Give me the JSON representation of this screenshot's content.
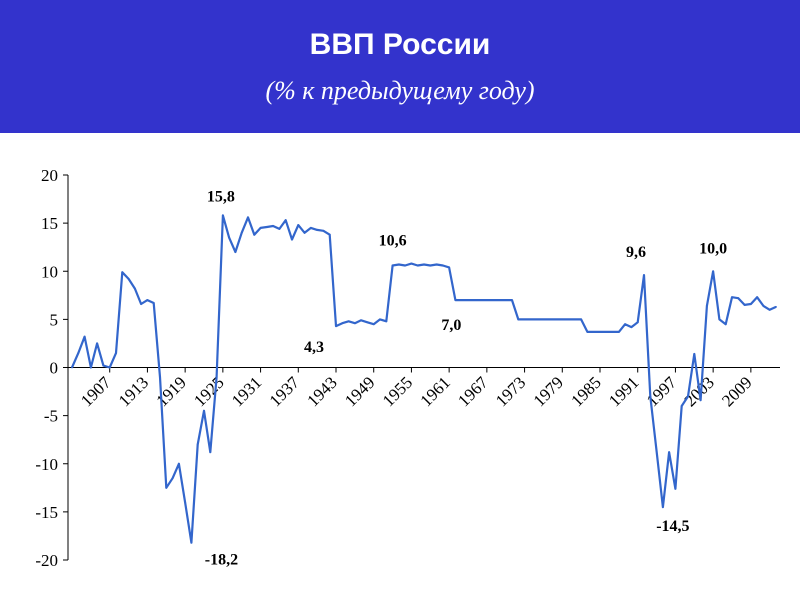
{
  "header": {
    "title": "ВВП России",
    "subtitle": "(% к предыдущему году)",
    "background": "#3333cc"
  },
  "chart_data": {
    "type": "line",
    "title": "ВВП России",
    "subtitle": "(% к предыдущему году)",
    "xlabel": "",
    "ylabel": "",
    "ylim": [
      -20,
      20
    ],
    "yticks": [
      20,
      15,
      10,
      5,
      0,
      -5,
      -10,
      -15,
      -20
    ],
    "ytick_labels": [
      "20",
      "15",
      "10",
      "5",
      "0",
      "-5",
      "-10",
      "-15",
      "-20"
    ],
    "xticks": [
      "1907",
      "1913",
      "1919",
      "1925",
      "1931",
      "1937",
      "1943",
      "1949",
      "1955",
      "1961",
      "1967",
      "1973",
      "1979",
      "1985",
      "1991",
      "1997",
      "2003",
      "2009"
    ],
    "grid": false,
    "line_color": "#3366cc",
    "series": [
      {
        "name": "",
        "points": [
          [
            1901,
            0
          ],
          [
            1902,
            1.5
          ],
          [
            1903,
            3.2
          ],
          [
            1904,
            0
          ],
          [
            1905,
            2.5
          ],
          [
            1906,
            0.2
          ],
          [
            1907,
            0
          ],
          [
            1908,
            1.5
          ],
          [
            1909,
            9.9
          ],
          [
            1910,
            9.2
          ],
          [
            1911,
            8.2
          ],
          [
            1912,
            6.6
          ],
          [
            1913,
            7.0
          ],
          [
            1914,
            6.7
          ],
          [
            1915,
            -1.0
          ],
          [
            1916,
            -12.5
          ],
          [
            1917,
            -11.5
          ],
          [
            1918,
            -10.0
          ],
          [
            1919,
            -14.0
          ],
          [
            1920,
            -18.2
          ],
          [
            1921,
            -8.0
          ],
          [
            1922,
            -4.5
          ],
          [
            1923,
            -8.8
          ],
          [
            1924,
            -1.0
          ],
          [
            1925,
            15.8
          ],
          [
            1926,
            13.5
          ],
          [
            1927,
            12.0
          ],
          [
            1928,
            14.0
          ],
          [
            1929,
            15.6
          ],
          [
            1930,
            13.8
          ],
          [
            1931,
            14.5
          ],
          [
            1932,
            14.6
          ],
          [
            1933,
            14.7
          ],
          [
            1934,
            14.4
          ],
          [
            1935,
            15.3
          ],
          [
            1936,
            13.3
          ],
          [
            1937,
            14.8
          ],
          [
            1938,
            14.0
          ],
          [
            1939,
            14.5
          ],
          [
            1940,
            14.3
          ],
          [
            1941,
            14.2
          ],
          [
            1942,
            13.8
          ],
          [
            1943,
            4.3
          ],
          [
            1944,
            4.6
          ],
          [
            1945,
            4.8
          ],
          [
            1946,
            4.6
          ],
          [
            1947,
            4.9
          ],
          [
            1948,
            4.7
          ],
          [
            1949,
            4.5
          ],
          [
            1950,
            5.0
          ],
          [
            1951,
            4.8
          ],
          [
            1952,
            10.6
          ],
          [
            1953,
            10.7
          ],
          [
            1954,
            10.6
          ],
          [
            1955,
            10.8
          ],
          [
            1956,
            10.6
          ],
          [
            1957,
            10.7
          ],
          [
            1958,
            10.6
          ],
          [
            1959,
            10.7
          ],
          [
            1960,
            10.6
          ],
          [
            1961,
            10.4
          ],
          [
            1962,
            7.0
          ],
          [
            1970,
            7.0
          ],
          [
            1971,
            7.0
          ],
          [
            1972,
            5.0
          ],
          [
            1982,
            5.0
          ],
          [
            1983,
            3.7
          ],
          [
            1988,
            3.7
          ],
          [
            1989,
            4.5
          ],
          [
            1990,
            4.2
          ],
          [
            1991,
            4.7
          ],
          [
            1992,
            9.6
          ],
          [
            1993,
            -3.0
          ],
          [
            1994,
            -8.7
          ],
          [
            1995,
            -14.5
          ],
          [
            1996,
            -8.8
          ],
          [
            1997,
            -12.6
          ],
          [
            1998,
            -4.0
          ],
          [
            1999,
            -3.0
          ],
          [
            2000,
            1.4
          ],
          [
            2001,
            -3.4
          ],
          [
            2002,
            6.4
          ],
          [
            2003,
            10.0
          ],
          [
            2004,
            5.0
          ],
          [
            2005,
            4.5
          ],
          [
            2006,
            7.3
          ],
          [
            2007,
            7.2
          ],
          [
            2008,
            6.5
          ],
          [
            2009,
            6.6
          ],
          [
            2010,
            7.3
          ],
          [
            2011,
            6.4
          ],
          [
            2012,
            6.0
          ],
          [
            2013,
            6.3
          ]
        ]
      }
    ],
    "annotations": [
      {
        "text": "15,8",
        "x": 1925,
        "y": 15.8
      },
      {
        "text": "-18,2",
        "x": 1920,
        "y": -18.2
      },
      {
        "text": "4,3",
        "x": 1943,
        "y": 4.3
      },
      {
        "text": "10,6",
        "x": 1952,
        "y": 10.6
      },
      {
        "text": "7,0",
        "x": 1962,
        "y": 7.0
      },
      {
        "text": "9,6",
        "x": 1992,
        "y": 9.6
      },
      {
        "text": "-14,5",
        "x": 1995,
        "y": -14.5
      },
      {
        "text": "10,0",
        "x": 2003,
        "y": 10.0
      }
    ]
  }
}
